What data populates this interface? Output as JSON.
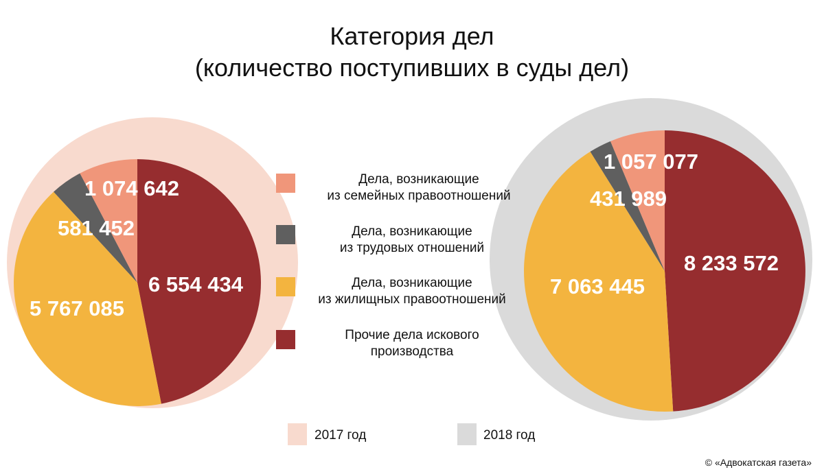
{
  "title": {
    "line1": "Категория дел",
    "line2": "(количество поступивших в суды дел)"
  },
  "colors": {
    "family": "#f0967a",
    "labor": "#5f5f5f",
    "housing": "#f3b43f",
    "other": "#962d2f",
    "bg2017": "#f8dace",
    "bg2018": "#dadada"
  },
  "legend": [
    {
      "key": "family",
      "line1": "Дела, возникающие",
      "line2": "из семейных правоотношений"
    },
    {
      "key": "labor",
      "line1": "Дела, возникающие",
      "line2": "из трудовых отношений"
    },
    {
      "key": "housing",
      "line1": "Дела, возникающие",
      "line2": "из жилищных правоотношений"
    },
    {
      "key": "other",
      "line1": "Прочие дела искового",
      "line2": "производства"
    }
  ],
  "years": {
    "y2017": "2017 год",
    "y2018": "2018 год"
  },
  "copyright": "© «Адвокатская газета»",
  "chart_data": [
    {
      "type": "pie",
      "name": "2017 год",
      "categories": [
        "Прочие дела искового производства",
        "Дела, возникающие из жилищных правоотношений",
        "Дела, возникающие из трудовых отношений",
        "Дела, возникающие из семейных правоотношений"
      ],
      "values": [
        6554434,
        5767085,
        581452,
        1074642
      ],
      "labels": [
        "6 554 434",
        "5 767 085",
        "581 452",
        "1 074 642"
      ]
    },
    {
      "type": "pie",
      "name": "2018 год",
      "categories": [
        "Прочие дела искового производства",
        "Дела, возникающие из жилищных правоотношений",
        "Дела, возникающие из трудовых отношений",
        "Дела, возникающие из семейных правоотношений"
      ],
      "values": [
        8233572,
        7063445,
        431989,
        1057077
      ],
      "labels": [
        "8 233 572",
        "7 063 445",
        "431 989",
        "1 057 077"
      ]
    }
  ]
}
